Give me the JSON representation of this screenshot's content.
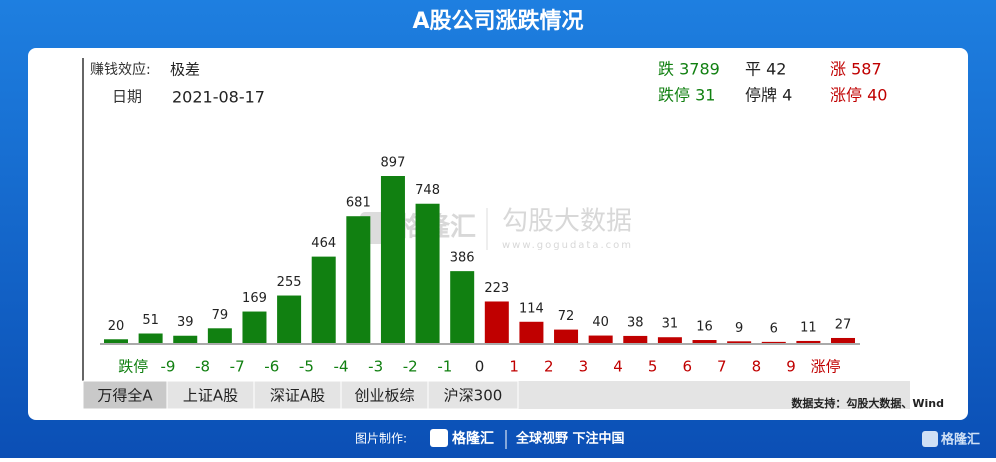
{
  "chart_data": {
    "type": "bar",
    "title": "A股公司涨跌情况",
    "effect_label": "赚钱效应:",
    "effect_value": "极差",
    "date_label": "日期",
    "date": "2021-08-17",
    "stats": [
      [
        "跌 3789",
        "平 42",
        "涨 587"
      ],
      [
        "跌停 31",
        "停牌 4",
        "涨停 40"
      ]
    ],
    "categories": [
      "跌停",
      "-9",
      "-8",
      "-7",
      "-6",
      "-5",
      "-4",
      "-3",
      "-2",
      "-1",
      "0",
      "1",
      "2",
      "3",
      "4",
      "5",
      "6",
      "7",
      "8",
      "9",
      "涨停",
      null
    ],
    "values": [
      20,
      51,
      39,
      79,
      169,
      255,
      464,
      681,
      897,
      748,
      386,
      223,
      114,
      72,
      40,
      38,
      31,
      16,
      9,
      6,
      11,
      27
    ],
    "colors": [
      "#118011",
      "#118011",
      "#118011",
      "#118011",
      "#118011",
      "#118011",
      "#118011",
      "#118011",
      "#118011",
      "#118011",
      "#118011",
      "#c00000",
      "#c00000",
      "#c00000",
      "#c00000",
      "#c00000",
      "#c00000",
      "#c00000",
      "#c00000",
      "#c00000",
      "#c00000",
      "#c00000"
    ],
    "tabs": [
      "万得全A",
      "上证A股",
      "深证A股",
      "创业板综",
      "沪深300"
    ],
    "source": "数据支持：勾股大数据、Wind",
    "watermark": [
      "格隆汇",
      "勾股大数据",
      "www.gogudata.com"
    ],
    "footer": [
      "图片制作:",
      "格隆汇",
      "全球视野 下注中国",
      "格隆汇"
    ]
  }
}
